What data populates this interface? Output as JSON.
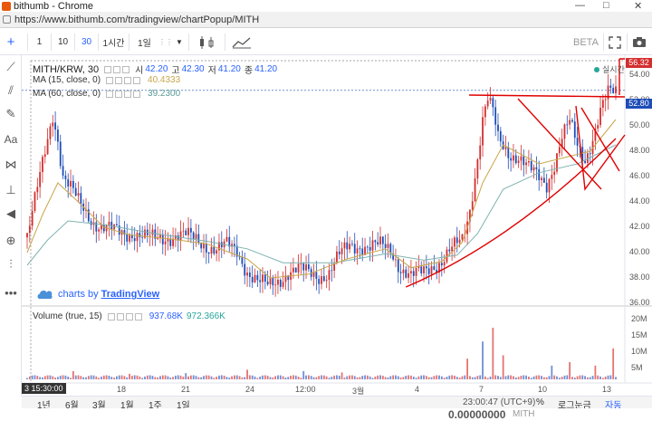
{
  "window": {
    "title": "bithumb - Chrome",
    "url": "https://www.bithumb.com/tradingview/chartPopup/MITH"
  },
  "toolbar": {
    "intervals": [
      "1",
      "10",
      "30",
      "1시간",
      "1일"
    ],
    "active_interval": "30",
    "beta": "BETA"
  },
  "legend": {
    "symbol": "MITH/KRW, 30",
    "open_label": "시",
    "open": "42.20",
    "high_label": "고",
    "high": "42.30",
    "low_label": "저",
    "low": "41.20",
    "close_label": "종",
    "close": "41.20",
    "ma15_label": "MA (15, close, 0)",
    "ma15_value": "40.4333",
    "ma60_label": "MA (60, close, 0)",
    "ma60_value": "39.2300",
    "volume_label": "Volume (true, 15)",
    "volume_value1": "937.68K",
    "volume_value2": "972.366K",
    "realtime": "실시간"
  },
  "branding": {
    "text": "charts by ",
    "brand": "TradingView"
  },
  "price_axis": {
    "ticks": [
      "54.00",
      "52.00",
      "50.00",
      "48.00",
      "46.00",
      "44.00",
      "42.00",
      "40.00",
      "38.00",
      "36.00"
    ],
    "last_price": "52.80",
    "top_price": "56.32"
  },
  "volume_axis": {
    "ticks": [
      "20M",
      "15M",
      "10M",
      "5M"
    ]
  },
  "time_axis": {
    "ticks": [
      "18",
      "21",
      "24",
      "12:00",
      "3월",
      "4",
      "7",
      "10",
      "13"
    ],
    "cursor_label": "3 15:30:00"
  },
  "bottombar": {
    "ranges": [
      "1년",
      "6월",
      "3월",
      "1월",
      "1주",
      "1일"
    ],
    "clock": "23:00:47 (UTC+9)",
    "percent": "%",
    "log": "로그눈금",
    "auto": "자동"
  },
  "footer": {
    "price": "0.00000000",
    "unit": "MITH"
  },
  "colors": {
    "up": "#d32f2f",
    "down": "#1e4db7",
    "ma15": "#c8a64a",
    "ma60": "#7fb3b0",
    "annotation": "#e00000",
    "accent": "#2962ff"
  },
  "chart_data": {
    "type": "candlestick",
    "x_ticks": [
      "18",
      "21",
      "24",
      "12:00",
      "3월",
      "4",
      "7",
      "10",
      "13"
    ],
    "y_ticks": [
      "54.00",
      "52.00",
      "50.00",
      "48.00",
      "46.00",
      "44.00",
      "42.00",
      "40.00",
      "38.00",
      "36.00"
    ],
    "ylim": [
      36,
      55
    ],
    "close_path": [
      [
        0,
        41.2
      ],
      [
        3,
        44
      ],
      [
        6,
        47
      ],
      [
        8,
        49
      ],
      [
        10,
        51
      ],
      [
        12,
        49
      ],
      [
        14,
        46
      ],
      [
        17,
        45
      ],
      [
        20,
        44
      ],
      [
        23,
        43.2
      ],
      [
        26,
        42.5
      ],
      [
        29,
        42
      ],
      [
        32,
        41.8
      ],
      [
        35,
        41.6
      ],
      [
        38,
        41.5
      ],
      [
        42,
        41.6
      ],
      [
        46,
        41.2
      ],
      [
        50,
        41
      ],
      [
        54,
        41.2
      ],
      [
        58,
        41.4
      ],
      [
        62,
        41.3
      ],
      [
        66,
        41
      ],
      [
        70,
        40.6
      ],
      [
        74,
        40.3
      ],
      [
        78,
        40.5
      ],
      [
        82,
        40.1
      ],
      [
        86,
        38.6
      ],
      [
        90,
        37.7
      ],
      [
        94,
        37.3
      ],
      [
        98,
        37.8
      ],
      [
        102,
        38.5
      ],
      [
        106,
        38.6
      ],
      [
        110,
        38.4
      ],
      [
        114,
        38.2
      ],
      [
        118,
        38.4
      ],
      [
        122,
        39.7
      ],
      [
        126,
        40.6
      ],
      [
        130,
        40.6
      ],
      [
        134,
        40.4
      ],
      [
        138,
        40.5
      ],
      [
        142,
        40.3
      ],
      [
        146,
        38.8
      ],
      [
        150,
        38
      ],
      [
        154,
        38.4
      ],
      [
        158,
        39
      ],
      [
        162,
        39.3
      ],
      [
        166,
        40.2
      ],
      [
        170,
        41
      ],
      [
        173,
        43.5
      ],
      [
        176,
        47.5
      ],
      [
        178,
        50.5
      ],
      [
        180,
        52
      ],
      [
        182,
        51
      ],
      [
        184,
        49
      ],
      [
        188,
        48
      ],
      [
        192,
        47.5
      ],
      [
        196,
        46.5
      ],
      [
        200,
        46
      ],
      [
        203,
        45.5
      ],
      [
        206,
        47
      ],
      [
        209,
        49
      ],
      [
        212,
        50.2
      ],
      [
        215,
        48.5
      ],
      [
        218,
        47.5
      ],
      [
        221,
        49
      ],
      [
        224,
        51
      ],
      [
        227,
        52.5
      ],
      [
        230,
        52.8
      ]
    ],
    "ma15_path": [
      [
        0,
        40
      ],
      [
        6,
        43
      ],
      [
        12,
        45.5
      ],
      [
        20,
        44
      ],
      [
        30,
        42
      ],
      [
        40,
        41.4
      ],
      [
        55,
        41.1
      ],
      [
        70,
        40.7
      ],
      [
        86,
        39.5
      ],
      [
        95,
        38
      ],
      [
        110,
        38.3
      ],
      [
        125,
        39.5
      ],
      [
        140,
        40.3
      ],
      [
        150,
        38.8
      ],
      [
        162,
        39.3
      ],
      [
        170,
        40.8
      ],
      [
        178,
        45.5
      ],
      [
        186,
        48.5
      ],
      [
        200,
        47
      ],
      [
        210,
        47.5
      ],
      [
        220,
        48
      ],
      [
        230,
        50.5
      ]
    ],
    "ma60_path": [
      [
        0,
        39
      ],
      [
        8,
        41
      ],
      [
        16,
        42.5
      ],
      [
        30,
        42.2
      ],
      [
        50,
        41.5
      ],
      [
        70,
        40.9
      ],
      [
        86,
        40.3
      ],
      [
        100,
        39.2
      ],
      [
        120,
        39.2
      ],
      [
        140,
        39.9
      ],
      [
        155,
        39.4
      ],
      [
        168,
        39.8
      ],
      [
        176,
        41.5
      ],
      [
        186,
        45
      ],
      [
        200,
        46.3
      ],
      [
        215,
        47
      ],
      [
        230,
        48.5
      ]
    ],
    "volume_spikes": [
      [
        18,
        0.12
      ],
      [
        40,
        0.08
      ],
      [
        62,
        0.09
      ],
      [
        86,
        0.14
      ],
      [
        108,
        0.12
      ],
      [
        123,
        0.1
      ],
      [
        172,
        0.3
      ],
      [
        178,
        0.55
      ],
      [
        182,
        0.75
      ],
      [
        186,
        0.35
      ],
      [
        205,
        0.2
      ],
      [
        212,
        0.25
      ],
      [
        222,
        0.2
      ],
      [
        229,
        0.45
      ]
    ]
  }
}
